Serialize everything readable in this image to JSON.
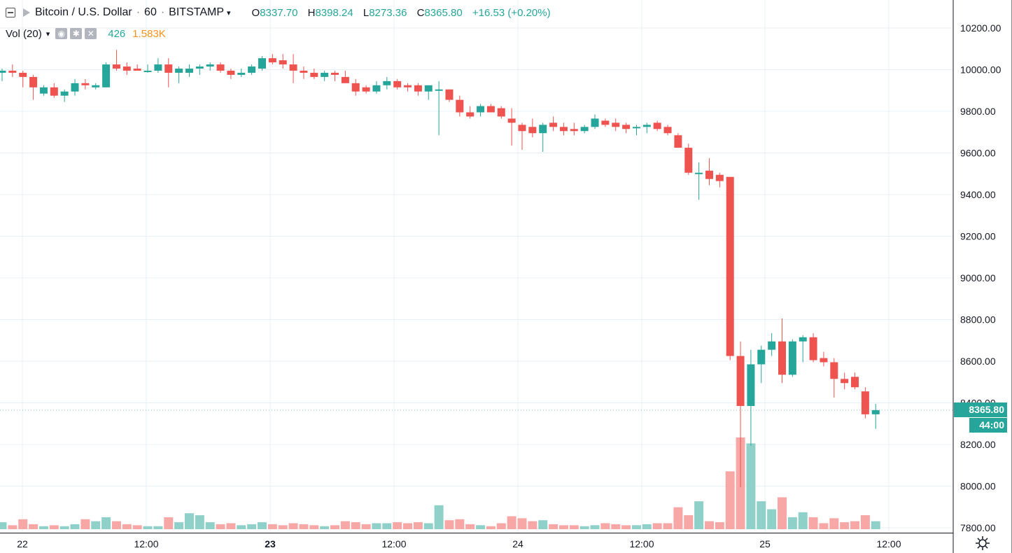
{
  "header": {
    "symbol": "Bitcoin / U.S. Dollar",
    "sep1": "·",
    "interval": "60",
    "sep2": "·",
    "exchange": "BITSTAMP",
    "ohlc": [
      {
        "k": "O",
        "v": "8337.70"
      },
      {
        "k": "H",
        "v": "8398.24"
      },
      {
        "k": "L",
        "v": "8273.36"
      },
      {
        "k": "C",
        "v": "8365.80"
      }
    ],
    "change": "+16.53 (+0.20%)"
  },
  "volume_legend": {
    "label": "Vol (20)",
    "volume": "426",
    "ma": "1.583K"
  },
  "price_tag": "8365.80",
  "countdown_tag": "44:00",
  "colors": {
    "up": "#26a69a",
    "down": "#ef5350",
    "up_vol": "#8fd1c9",
    "down_vol": "#f7a7a5",
    "grid": "#e9f0f5",
    "axis_text": "#131722"
  },
  "chart_data": {
    "type": "candlestick",
    "y_axis": {
      "ticks": [
        "10200.00",
        "10000.00",
        "9800.00",
        "9600.00",
        "9400.00",
        "9200.00",
        "9000.00",
        "8800.00",
        "8600.00",
        "8400.00",
        "8200.00",
        "8000.00",
        "7800.00"
      ],
      "min": 7800,
      "max": 10200
    },
    "x_axis": {
      "ticks": [
        "22",
        "12:00",
        "23",
        "12:00",
        "24",
        "12:00",
        "25",
        "12:00"
      ],
      "bold_ticks": [
        "23"
      ]
    },
    "candles": [
      [
        9985,
        10005,
        9945,
        9995,
        35
      ],
      [
        9995,
        10025,
        9965,
        9985,
        20
      ],
      [
        9985,
        9995,
        9915,
        9965,
        50
      ],
      [
        9965,
        9975,
        9855,
        9915,
        25
      ],
      [
        9885,
        9925,
        9875,
        9915,
        15
      ],
      [
        9915,
        9935,
        9865,
        9875,
        20
      ],
      [
        9875,
        9905,
        9845,
        9895,
        15
      ],
      [
        9895,
        9955,
        9875,
        9935,
        25
      ],
      [
        9935,
        9955,
        9905,
        9925,
        50
      ],
      [
        9915,
        9935,
        9905,
        9925,
        40
      ],
      [
        9915,
        10035,
        9915,
        10025,
        60
      ],
      [
        10025,
        10095,
        9995,
        10005,
        40
      ],
      [
        10015,
        10035,
        9975,
        9995,
        25
      ],
      [
        10005,
        10025,
        9995,
        9995,
        20
      ],
      [
        9995,
        10025,
        9985,
        9995,
        15
      ],
      [
        9995,
        10055,
        9985,
        10025,
        15
      ],
      [
        10025,
        10055,
        9915,
        9985,
        60
      ],
      [
        9985,
        10015,
        9935,
        10005,
        35
      ],
      [
        9985,
        10025,
        9965,
        10005,
        80
      ],
      [
        10005,
        10025,
        9975,
        10015,
        70
      ],
      [
        10015,
        10035,
        9995,
        10025,
        35
      ],
      [
        10025,
        10035,
        9985,
        9995,
        25
      ],
      [
        9995,
        10005,
        9955,
        9975,
        30
      ],
      [
        9975,
        10005,
        9965,
        9985,
        20
      ],
      [
        9985,
        10025,
        9975,
        10015,
        25
      ],
      [
        10005,
        10065,
        9995,
        10055,
        35
      ],
      [
        10055,
        10075,
        10025,
        10035,
        25
      ],
      [
        10045,
        10075,
        10005,
        10025,
        20
      ],
      [
        10025,
        10075,
        9935,
        9995,
        30
      ],
      [
        9995,
        10015,
        9955,
        9985,
        25
      ],
      [
        9985,
        10005,
        9955,
        9965,
        20
      ],
      [
        9965,
        9995,
        9945,
        9985,
        15
      ],
      [
        9985,
        9995,
        9945,
        9975,
        20
      ],
      [
        9965,
        9995,
        9935,
        9935,
        40
      ],
      [
        9935,
        9955,
        9875,
        9895,
        35
      ],
      [
        9915,
        9925,
        9885,
        9895,
        25
      ],
      [
        9895,
        9945,
        9885,
        9925,
        30
      ],
      [
        9925,
        9965,
        9905,
        9945,
        30
      ],
      [
        9945,
        9955,
        9905,
        9915,
        35
      ],
      [
        9925,
        9935,
        9895,
        9915,
        30
      ],
      [
        9925,
        9935,
        9875,
        9895,
        35
      ],
      [
        9895,
        9925,
        9855,
        9925,
        30
      ],
      [
        9905,
        9945,
        9685,
        9905,
        120
      ],
      [
        9905,
        9905,
        9845,
        9855,
        45
      ],
      [
        9855,
        9875,
        9775,
        9795,
        50
      ],
      [
        9795,
        9825,
        9765,
        9775,
        25
      ],
      [
        9795,
        9835,
        9775,
        9825,
        20
      ],
      [
        9825,
        9835,
        9795,
        9795,
        15
      ],
      [
        9815,
        9825,
        9765,
        9775,
        30
      ],
      [
        9765,
        9815,
        9635,
        9745,
        65
      ],
      [
        9735,
        9745,
        9615,
        9705,
        55
      ],
      [
        9725,
        9765,
        9675,
        9695,
        40
      ],
      [
        9695,
        9745,
        9605,
        9735,
        45
      ],
      [
        9745,
        9775,
        9705,
        9725,
        25
      ],
      [
        9725,
        9745,
        9685,
        9705,
        20
      ],
      [
        9715,
        9745,
        9685,
        9705,
        20
      ],
      [
        9705,
        9735,
        9695,
        9725,
        15
      ],
      [
        9725,
        9785,
        9715,
        9765,
        20
      ],
      [
        9755,
        9765,
        9725,
        9735,
        30
      ],
      [
        9745,
        9765,
        9705,
        9725,
        25
      ],
      [
        9735,
        9745,
        9695,
        9715,
        20
      ],
      [
        9725,
        9735,
        9685,
        9725,
        20
      ],
      [
        9725,
        9745,
        9695,
        9735,
        25
      ],
      [
        9745,
        9755,
        9705,
        9715,
        30
      ],
      [
        9725,
        9735,
        9685,
        9695,
        30
      ],
      [
        9685,
        9695,
        9625,
        9625,
        110
      ],
      [
        9625,
        9645,
        9495,
        9505,
        70
      ],
      [
        9505,
        9555,
        9375,
        9505,
        140
      ],
      [
        9515,
        9575,
        9445,
        9475,
        40
      ],
      [
        9495,
        9505,
        9435,
        9465,
        35
      ],
      [
        9485,
        9485,
        8605,
        8625,
        290
      ],
      [
        8625,
        8695,
        7995,
        8385,
        460
      ],
      [
        8385,
        8655,
        8195,
        8585,
        430
      ],
      [
        8585,
        8675,
        8495,
        8655,
        140
      ],
      [
        8655,
        8735,
        8625,
        8695,
        100
      ],
      [
        8695,
        8805,
        8495,
        8535,
        160
      ],
      [
        8535,
        8705,
        8525,
        8695,
        60
      ],
      [
        8695,
        8725,
        8595,
        8715,
        85
      ],
      [
        8715,
        8735,
        8595,
        8605,
        60
      ],
      [
        8615,
        8645,
        8575,
        8595,
        30
      ],
      [
        8595,
        8615,
        8425,
        8515,
        55
      ],
      [
        8515,
        8545,
        8465,
        8495,
        35
      ],
      [
        8525,
        8545,
        8465,
        8475,
        40
      ],
      [
        8455,
        8475,
        8325,
        8345,
        70
      ],
      [
        8345,
        8395,
        8275,
        8365,
        40
      ]
    ]
  }
}
